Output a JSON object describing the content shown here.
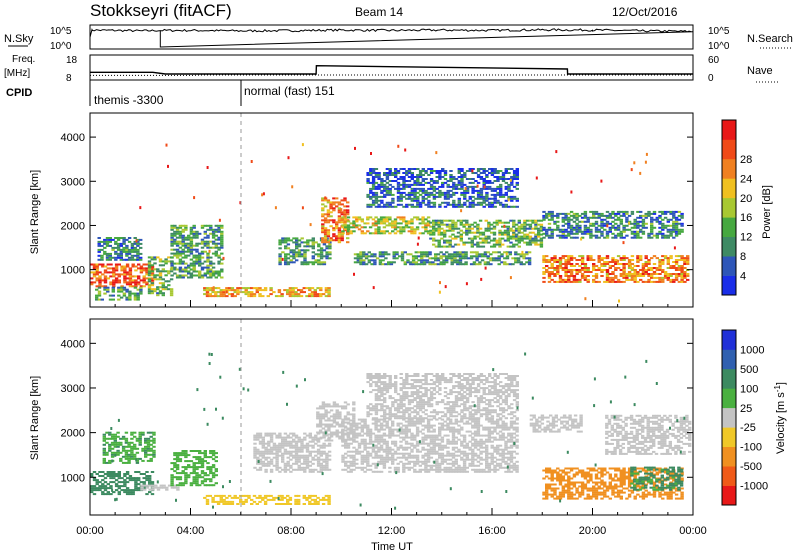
{
  "header": {
    "station": "Stokkseyri (fitACF)",
    "beam": "Beam 14",
    "date": "12/Oct/2016"
  },
  "noise_panel": {
    "left_label": "N.Sky",
    "right_label": "N.Search",
    "left_ticks": [
      "10^5",
      "10^0"
    ],
    "right_ticks": [
      "10^5",
      "10^0"
    ]
  },
  "freq_panel": {
    "left_label_top": "Freq.",
    "left_label_bottom": "[MHz]",
    "right_label": "Nave",
    "left_ticks": [
      "18",
      "8"
    ],
    "right_ticks": [
      "60",
      "0"
    ]
  },
  "cpid_panel": {
    "label": "CPID",
    "segments": [
      {
        "label": "themis -3300",
        "start_hour": 0,
        "end_hour": 6
      },
      {
        "label": "normal (fast) 151",
        "start_hour": 6,
        "end_hour": 24
      }
    ]
  },
  "x_axis": {
    "label": "Time UT",
    "ticks": [
      "00:00",
      "04:00",
      "08:00",
      "12:00",
      "16:00",
      "20:00",
      "00:00"
    ]
  },
  "colors": {
    "power_scale": [
      "#1a2ee8",
      "#2e56b8",
      "#3e8a64",
      "#46a840",
      "#a8c832",
      "#f0c020",
      "#f08020",
      "#f04a18",
      "#e81818"
    ],
    "velocity_scale": [
      "#2030d8",
      "#3060b0",
      "#3c8a60",
      "#4ab040",
      "#c4c4c4",
      "#f0c828",
      "#f09020",
      "#f05a18",
      "#e81818"
    ]
  },
  "chart_data": [
    {
      "type": "line",
      "title": "Stokkseyri (fitACF)  Beam 14  12/Oct/2016",
      "series": [
        {
          "name": "N.Sky",
          "x": [
            0,
            0.1,
            2,
            2.8,
            4,
            6,
            8,
            10,
            12,
            14,
            16,
            18,
            20,
            22,
            24
          ],
          "values": [
            1000,
            50000,
            30000,
            40000,
            40000,
            30000,
            35000,
            50000,
            40000,
            50000,
            40000,
            60000,
            50000,
            30000,
            20000
          ]
        },
        {
          "name": "N.Search",
          "x": [
            0,
            24
          ],
          "values": [
            null,
            null
          ]
        }
      ],
      "ylabel": "N.Sky",
      "ylim": [
        1,
        100000
      ],
      "yscale": "log"
    },
    {
      "type": "line",
      "series": [
        {
          "name": "Freq. [MHz]",
          "x": [
            0,
            4,
            4.5,
            9,
            19,
            24
          ],
          "values": [
            9.8,
            9.8,
            10.0,
            10.0,
            10.0,
            10.0
          ]
        },
        {
          "name": "Nave",
          "x": [
            0,
            2.5,
            3,
            9,
            9.01,
            19,
            19.01,
            24
          ],
          "values": [
            20,
            20,
            15,
            15,
            40,
            30,
            15,
            15
          ]
        }
      ],
      "ylabel": "Freq. [MHz]",
      "ylim": [
        8,
        18
      ],
      "y2label": "Nave",
      "y2lim": [
        0,
        60
      ]
    },
    {
      "type": "heatmap",
      "title": "Power",
      "xlabel": "Time UT",
      "ylabel": "Slant Range [km]",
      "xlim": [
        0,
        24
      ],
      "ylim": [
        200,
        4500
      ],
      "yticks": [
        1000,
        2000,
        3000,
        4000
      ],
      "colorbar_label": "Power [dB]",
      "colorbar_ticks": [
        4,
        8,
        12,
        16,
        20,
        24,
        28
      ],
      "colorbar_range": [
        0,
        30
      ],
      "regions": [
        {
          "t0": 0.0,
          "t1": 2.5,
          "r0": 600,
          "r1": 1100,
          "level": 24
        },
        {
          "t0": 0.2,
          "t1": 2.0,
          "r0": 300,
          "r1": 600,
          "level": 10
        },
        {
          "t0": 0.3,
          "t1": 2.0,
          "r0": 1200,
          "r1": 1700,
          "level": 8
        },
        {
          "t0": 2.3,
          "t1": 3.2,
          "r0": 400,
          "r1": 1300,
          "level": 12
        },
        {
          "t0": 3.2,
          "t1": 5.2,
          "r0": 800,
          "r1": 2000,
          "level": 10
        },
        {
          "t0": 4.5,
          "t1": 9.5,
          "r0": 380,
          "r1": 580,
          "level": 20
        },
        {
          "t0": 7.5,
          "t1": 9.5,
          "r0": 1100,
          "r1": 1700,
          "level": 10
        },
        {
          "t0": 9.2,
          "t1": 10.2,
          "r0": 1600,
          "r1": 2600,
          "level": 22
        },
        {
          "t0": 10.0,
          "t1": 13.5,
          "r0": 1800,
          "r1": 2200,
          "level": 16
        },
        {
          "t0": 10.5,
          "t1": 17.5,
          "r0": 1100,
          "r1": 1400,
          "level": 10
        },
        {
          "t0": 11.0,
          "t1": 17.0,
          "r0": 2400,
          "r1": 3300,
          "level": 5
        },
        {
          "t0": 13.5,
          "t1": 18.0,
          "r0": 1500,
          "r1": 2100,
          "level": 12
        },
        {
          "t0": 18.0,
          "t1": 23.8,
          "r0": 700,
          "r1": 1300,
          "level": 22
        },
        {
          "t0": 18.0,
          "t1": 23.5,
          "r0": 1700,
          "r1": 2300,
          "level": 8
        }
      ]
    },
    {
      "type": "heatmap",
      "title": "Velocity",
      "xlabel": "Time UT",
      "ylabel": "Slant Range [km]",
      "xlim": [
        0,
        24
      ],
      "ylim": [
        200,
        4500
      ],
      "yticks": [
        1000,
        2000,
        3000,
        4000
      ],
      "colorbar_label": "Velocity [m s^-1]",
      "colorbar_ticks": [
        1000,
        500,
        100,
        25,
        -25,
        -100,
        -500,
        -1000
      ],
      "regions": [
        {
          "t0": 0.0,
          "t1": 2.5,
          "r0": 600,
          "r1": 1100,
          "level": 300
        },
        {
          "t0": 0.5,
          "t1": 2.5,
          "r0": 1300,
          "r1": 2000,
          "level": 80
        },
        {
          "t0": 2.0,
          "t1": 3.5,
          "r0": 700,
          "r1": 800,
          "level": 0
        },
        {
          "t0": 3.2,
          "t1": 5.0,
          "r0": 800,
          "r1": 1600,
          "level": 60
        },
        {
          "t0": 4.5,
          "t1": 9.5,
          "r0": 380,
          "r1": 580,
          "level": -60
        },
        {
          "t0": 6.5,
          "t1": 9.5,
          "r0": 1100,
          "r1": 2000,
          "level": 0
        },
        {
          "t0": 9.0,
          "t1": 10.5,
          "r0": 1800,
          "r1": 2700,
          "level": 0
        },
        {
          "t0": 10.0,
          "t1": 17.0,
          "r0": 1100,
          "r1": 2300,
          "level": 0
        },
        {
          "t0": 11.0,
          "t1": 17.0,
          "r0": 2300,
          "r1": 3300,
          "level": 0
        },
        {
          "t0": 17.5,
          "t1": 19.5,
          "r0": 2000,
          "r1": 2400,
          "level": 0
        },
        {
          "t0": 18.0,
          "t1": 23.5,
          "r0": 500,
          "r1": 1200,
          "level": -250
        },
        {
          "t0": 20.5,
          "t1": 23.8,
          "r0": 1500,
          "r1": 2400,
          "level": 0
        },
        {
          "t0": 21.5,
          "t1": 23.5,
          "r0": 700,
          "r1": 1200,
          "level": 150
        }
      ]
    }
  ]
}
